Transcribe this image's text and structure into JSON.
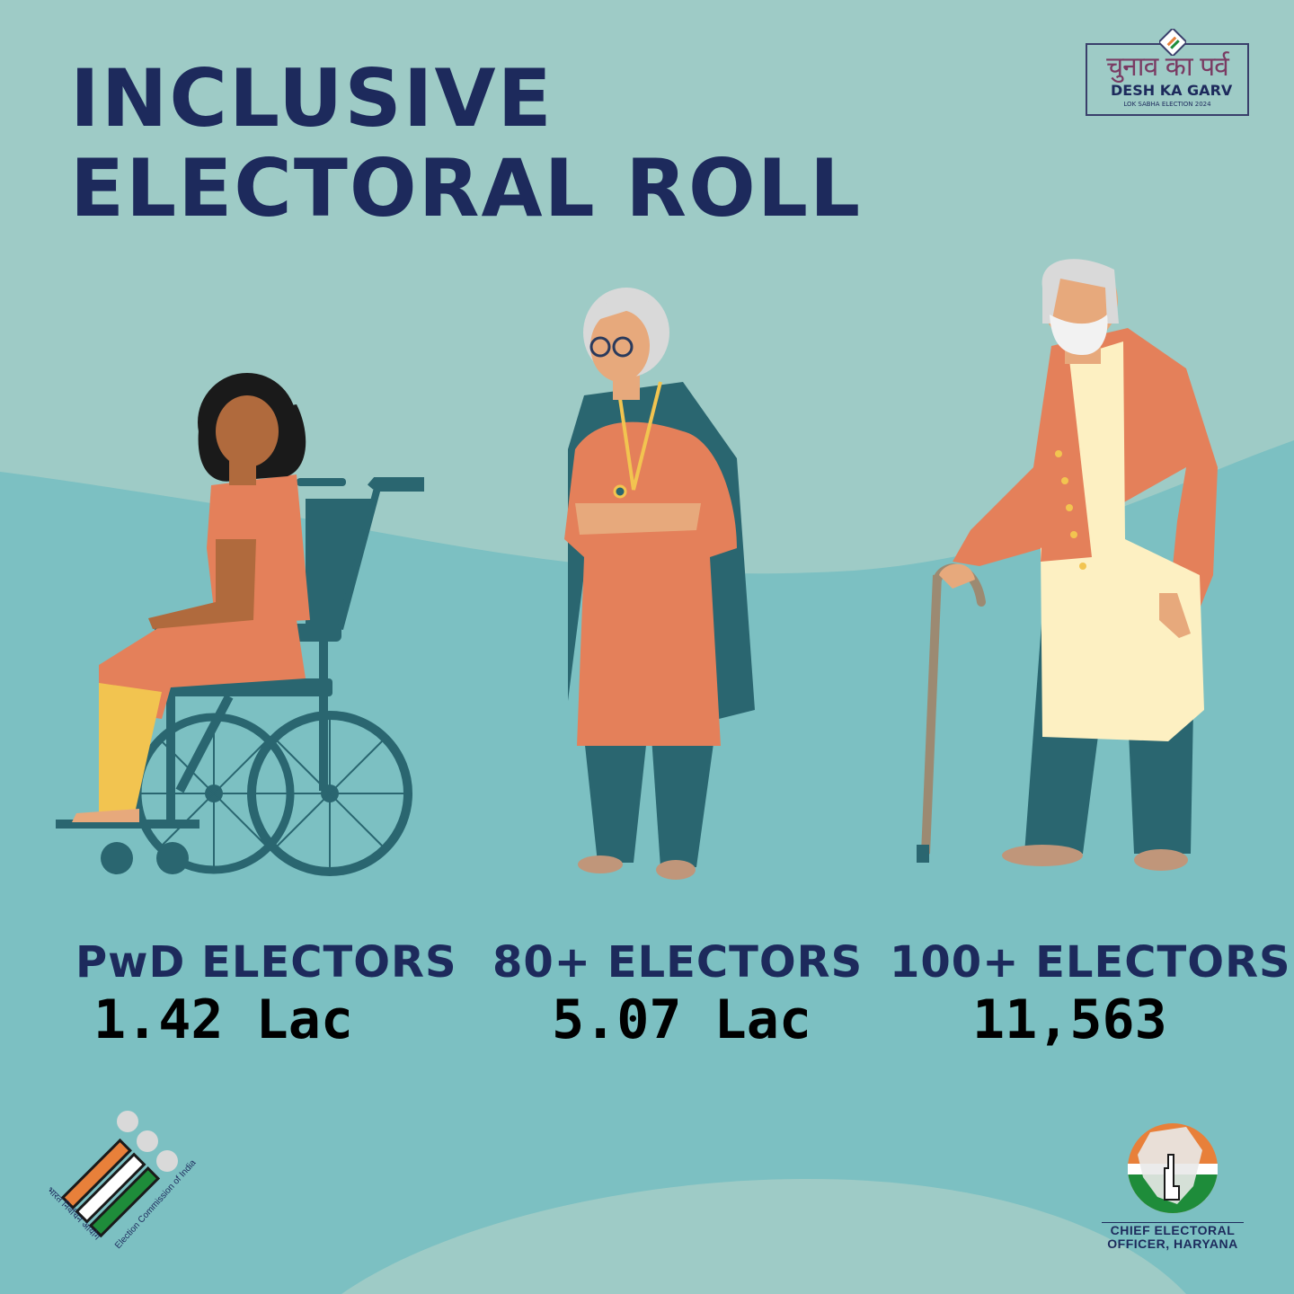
{
  "title": {
    "line1": "INCLUSIVE",
    "line2": "ELECTORAL ROLL"
  },
  "brand": {
    "hindi": "चुनाव का पर्व",
    "english": "DESH KA GARV",
    "sub": "LOK SABHA ELECTION 2024"
  },
  "stats": [
    {
      "label": "PwD ELECTORS",
      "value": "1.42 Lac"
    },
    {
      "label": "80+ ELECTORS",
      "value": "5.07 Lac"
    },
    {
      "label": "100+ ELECTORS",
      "value": "11,563"
    }
  ],
  "eci_logo": {
    "hindi": "भारत निर्वाचन आयोग",
    "english": "Election Commission of India"
  },
  "ceo_logo": {
    "line1": "CHIEF ELECTORAL",
    "line2": "OFFICER, HARYANA"
  },
  "colors": {
    "bg_light": "#9ecbc6",
    "bg_main": "#7cc0c2",
    "navy": "#1d2a5c",
    "teal_dark": "#2a6670",
    "orange": "#e4805a",
    "yellow": "#f2c450",
    "cream": "#fdf0c2",
    "skin": "#e7a97c",
    "skin_dark": "#b06a3d",
    "hair_grey": "#d9d9d9",
    "saffron": "#e8803a",
    "green": "#1e8c3a"
  }
}
